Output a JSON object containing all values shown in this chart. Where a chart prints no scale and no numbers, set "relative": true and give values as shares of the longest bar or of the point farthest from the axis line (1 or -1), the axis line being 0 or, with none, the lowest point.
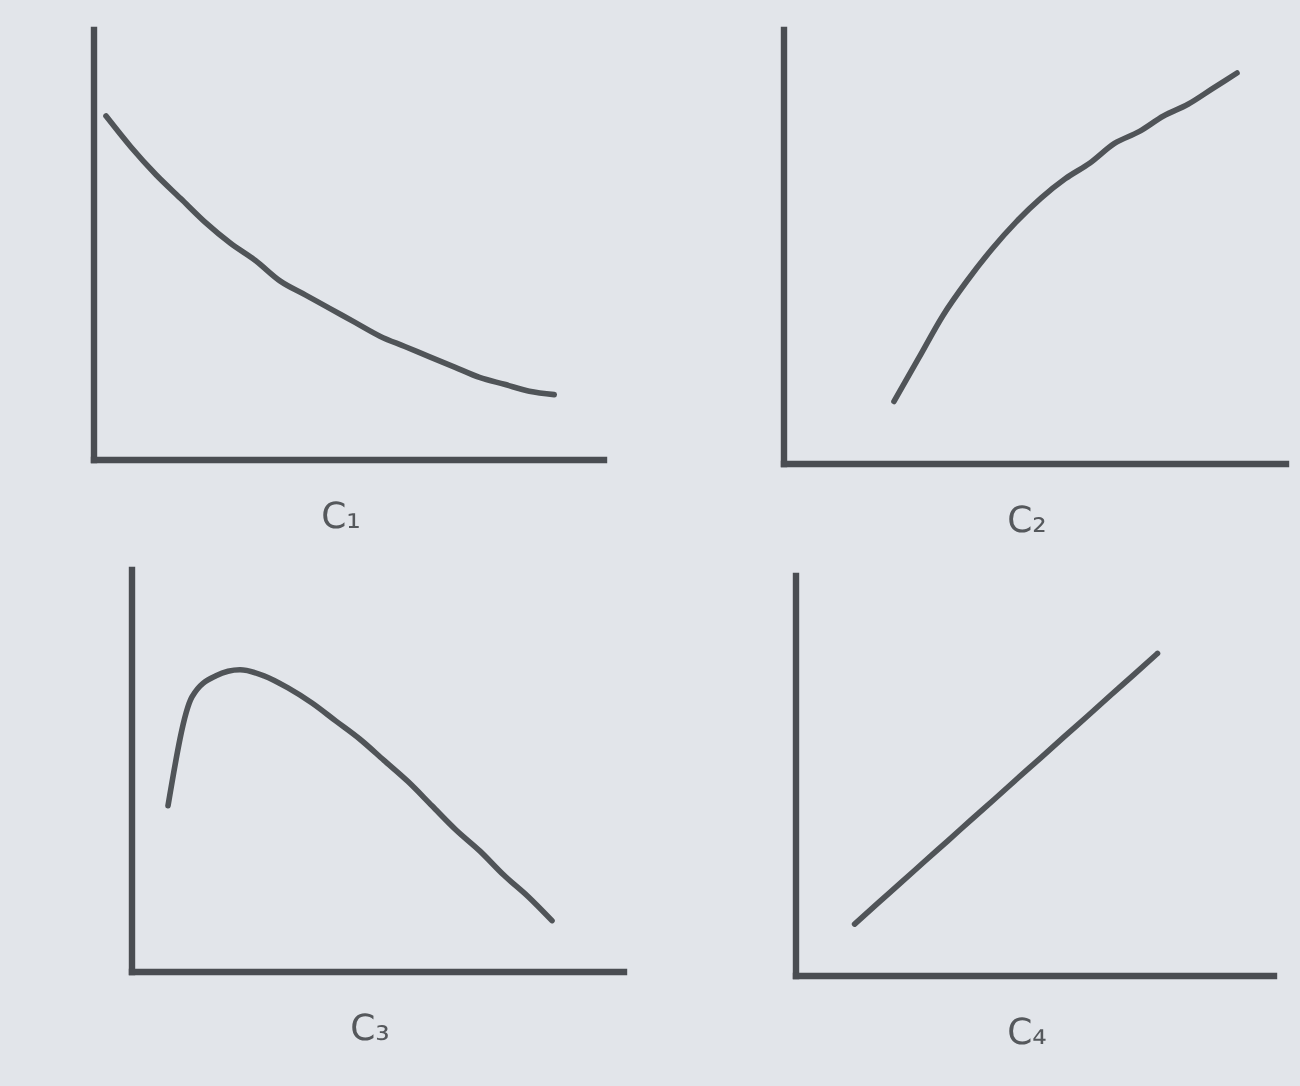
{
  "chart_data": [
    {
      "type": "line",
      "xlabel": "C₁",
      "relative": true,
      "categories": [
        null,
        null,
        null,
        null,
        null,
        null,
        null,
        null,
        null,
        null,
        null,
        null,
        null,
        null,
        null,
        null,
        null,
        null,
        null,
        null,
        null
      ],
      "color": "#505458",
      "values": [
        1.0,
        0.91,
        0.83,
        0.76,
        0.69,
        0.63,
        0.58,
        0.52,
        0.48,
        0.44,
        0.4,
        0.36,
        0.33,
        0.3,
        0.27,
        0.24,
        0.22,
        0.2,
        0.19,
        null,
        null
      ]
    },
    {
      "type": "line",
      "xlabel": "C₂",
      "relative": true,
      "categories": [
        null,
        null,
        null,
        null,
        null,
        null,
        null,
        null,
        null,
        null,
        null,
        null,
        null,
        null,
        null,
        null,
        null,
        null,
        null,
        null,
        null
      ],
      "color": "#505458",
      "values": [
        null,
        null,
        null,
        null,
        0.16,
        0.27,
        0.38,
        0.47,
        0.55,
        0.62,
        0.68,
        0.73,
        0.77,
        0.82,
        0.85,
        0.89,
        0.92,
        0.96,
        1.0,
        null,
        null
      ]
    },
    {
      "type": "line",
      "xlabel": "C₃",
      "relative": true,
      "categories": [
        null,
        null,
        null,
        null,
        null,
        null,
        null,
        null,
        null,
        null,
        null,
        null,
        null,
        null,
        null,
        null,
        null,
        null,
        null,
        null,
        null
      ],
      "color": "#505458",
      "values": [
        null,
        0.55,
        0.91,
        0.98,
        1.0,
        0.98,
        0.94,
        0.89,
        0.83,
        0.77,
        0.7,
        0.63,
        0.55,
        0.47,
        0.4,
        0.32,
        0.25,
        0.17,
        null,
        null,
        null
      ]
    },
    {
      "type": "line",
      "xlabel": "C₄",
      "relative": true,
      "categories": [
        null,
        null,
        null,
        null,
        null,
        null,
        null,
        null,
        null,
        null,
        null,
        null,
        null,
        null,
        null,
        null,
        null,
        null,
        null,
        null,
        null
      ],
      "color": "#505458",
      "values": [
        null,
        null,
        0.161,
        0.226,
        0.29,
        0.355,
        0.419,
        0.484,
        0.548,
        0.613,
        0.677,
        0.742,
        0.806,
        0.871,
        0.935,
        1.0,
        null,
        null,
        null,
        null,
        null
      ]
    }
  ]
}
